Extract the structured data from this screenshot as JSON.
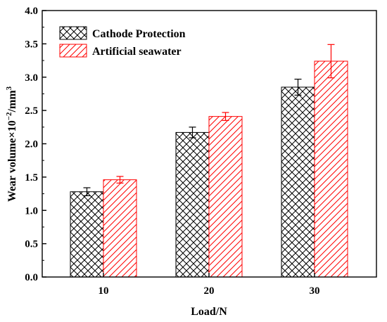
{
  "chart_data": {
    "type": "bar",
    "title": "",
    "xlabel": "Load/N",
    "ylabel": {
      "prefix": "Wear volume×10",
      "sup1": "−2",
      "mid": "/mm",
      "sup2": "3"
    },
    "categories": [
      "10",
      "20",
      "30"
    ],
    "ylim": [
      0.0,
      4.0
    ],
    "yticks": [
      "0.0",
      "0.5",
      "1.0",
      "1.5",
      "2.0",
      "2.5",
      "3.0",
      "3.5",
      "4.0"
    ],
    "ytick_values": [
      0.0,
      0.5,
      1.0,
      1.5,
      2.0,
      2.5,
      3.0,
      3.5,
      4.0
    ],
    "grid": false,
    "legend_position": "top-left",
    "series": [
      {
        "name": "Cathode Protection",
        "values": [
          1.28,
          2.17,
          2.85
        ],
        "errors": [
          0.06,
          0.08,
          0.12
        ],
        "color": "#000000",
        "pattern": "crosshatch"
      },
      {
        "name": "Artificial seawater",
        "values": [
          1.46,
          2.41,
          3.24
        ],
        "errors": [
          0.05,
          0.06,
          0.25
        ],
        "color": "#ff0000",
        "pattern": "diagonal"
      }
    ]
  }
}
